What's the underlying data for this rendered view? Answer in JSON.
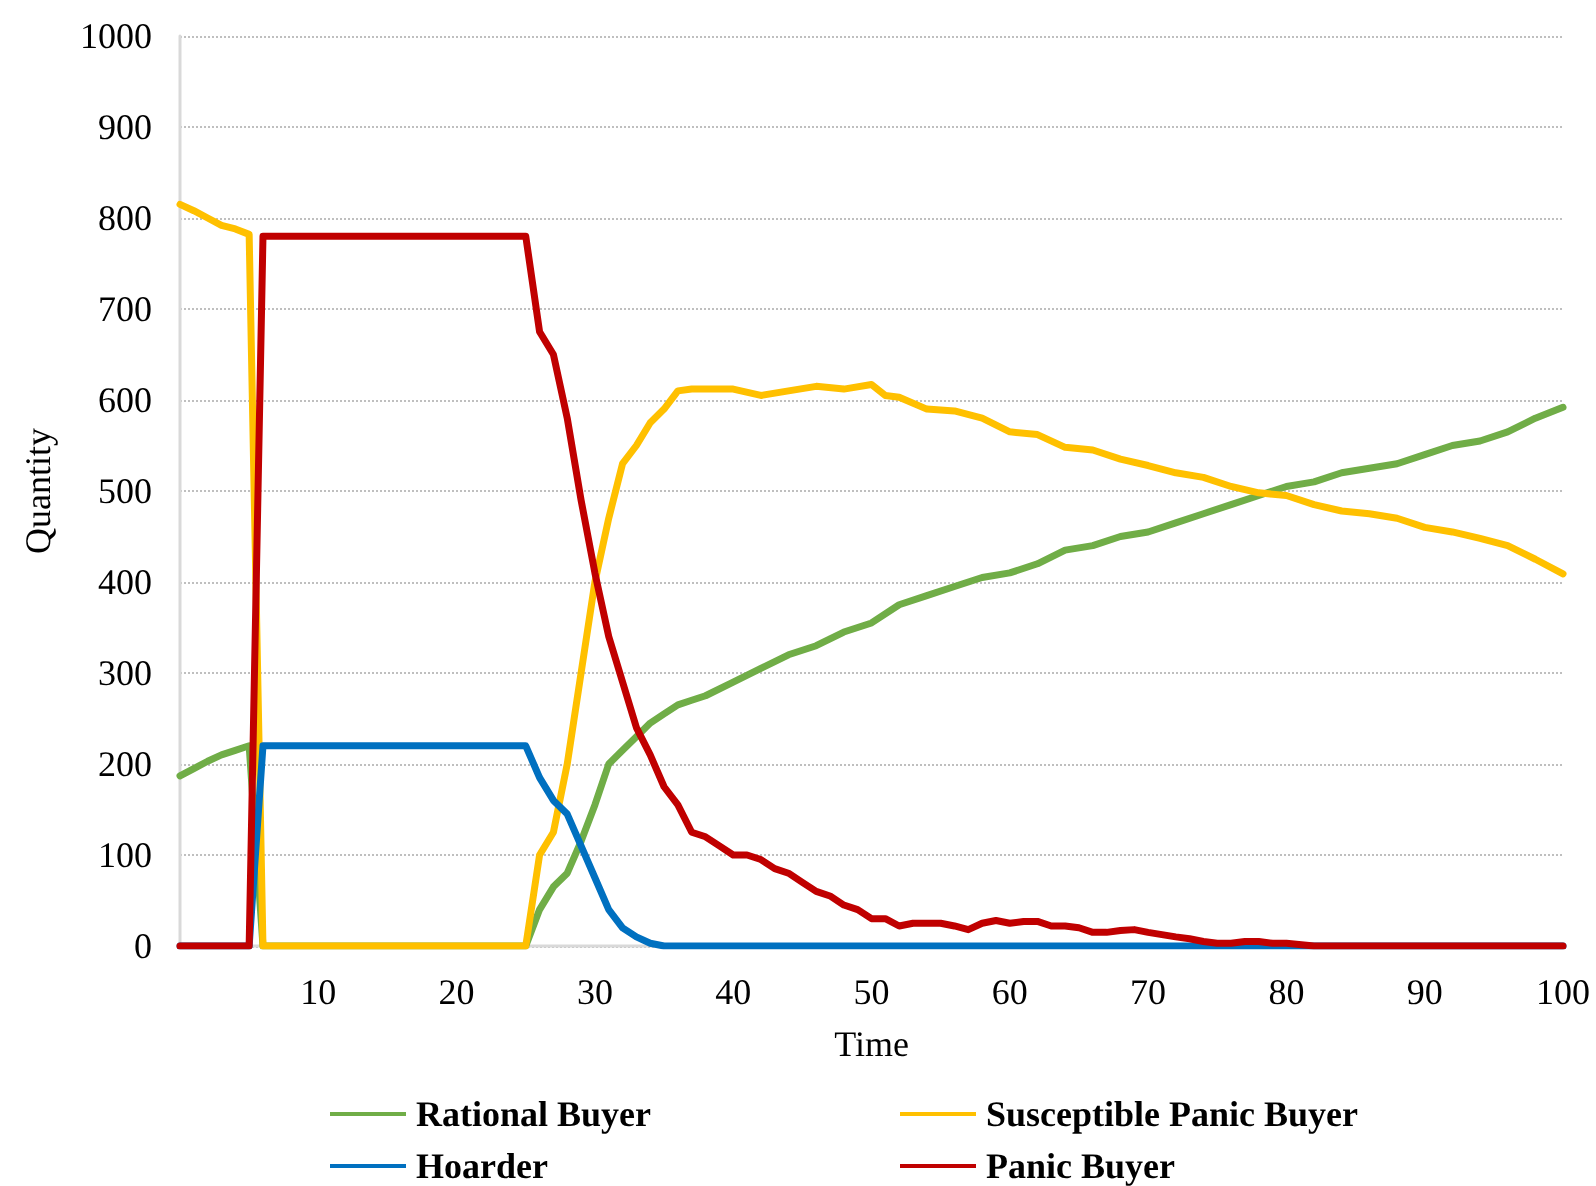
{
  "chart_data": {
    "type": "line",
    "xlabel": "Time",
    "ylabel": "Quantity",
    "xlim": [
      0,
      100
    ],
    "xticks": [
      10,
      20,
      30,
      40,
      50,
      60,
      70,
      80,
      90,
      100
    ],
    "ylim": [
      0,
      1000
    ],
    "yticks": [
      0,
      100,
      200,
      300,
      400,
      500,
      600,
      700,
      800,
      900,
      1000
    ],
    "grid": "y",
    "legend": "bottom",
    "marker": "none",
    "line_style": "solid",
    "series": [
      {
        "name": "Rational Buyer",
        "color": "#70ad47",
        "x": [
          0,
          1,
          2,
          3,
          4,
          5,
          6,
          10,
          15,
          20,
          25,
          26,
          27,
          28,
          29,
          30,
          31,
          32,
          33,
          34,
          35,
          36,
          37,
          38,
          40,
          42,
          44,
          46,
          48,
          50,
          52,
          54,
          56,
          58,
          60,
          62,
          64,
          66,
          68,
          70,
          72,
          74,
          76,
          78,
          80,
          82,
          84,
          86,
          88,
          90,
          92,
          94,
          96,
          98,
          100
        ],
        "values": [
          187,
          195,
          203,
          210,
          215,
          220,
          0,
          0,
          0,
          0,
          0,
          40,
          65,
          80,
          115,
          155,
          200,
          215,
          230,
          245,
          255,
          265,
          270,
          275,
          290,
          305,
          320,
          330,
          345,
          355,
          375,
          385,
          395,
          405,
          410,
          420,
          435,
          440,
          450,
          455,
          465,
          475,
          485,
          495,
          505,
          510,
          520,
          525,
          530,
          540,
          550,
          555,
          565,
          580,
          592
        ]
      },
      {
        "name": "Susceptible Panic Buyer",
        "color": "#ffc000",
        "x": [
          0,
          1,
          2,
          3,
          4,
          5,
          6,
          10,
          15,
          20,
          25,
          26,
          27,
          28,
          29,
          30,
          31,
          32,
          33,
          34,
          35,
          36,
          37,
          38,
          40,
          42,
          44,
          46,
          48,
          50,
          51,
          52,
          54,
          56,
          58,
          60,
          62,
          64,
          66,
          68,
          70,
          72,
          74,
          76,
          78,
          80,
          82,
          84,
          86,
          88,
          90,
          92,
          94,
          96,
          98,
          100
        ],
        "values": [
          815,
          808,
          800,
          792,
          788,
          782,
          0,
          0,
          0,
          0,
          0,
          100,
          125,
          200,
          300,
          400,
          470,
          530,
          550,
          575,
          590,
          610,
          612,
          612,
          612,
          605,
          610,
          615,
          612,
          617,
          605,
          603,
          590,
          588,
          580,
          565,
          562,
          548,
          545,
          535,
          528,
          520,
          515,
          505,
          498,
          495,
          485,
          478,
          475,
          470,
          460,
          455,
          448,
          440,
          425,
          409
        ]
      },
      {
        "name": "Hoarder",
        "color": "#0070c0",
        "x": [
          0,
          5,
          6,
          10,
          15,
          20,
          25,
          26,
          27,
          28,
          29,
          30,
          31,
          32,
          33,
          34,
          35,
          50,
          100
        ],
        "values": [
          0,
          0,
          220,
          220,
          220,
          220,
          220,
          185,
          160,
          145,
          110,
          75,
          40,
          20,
          10,
          3,
          0,
          0,
          0
        ]
      },
      {
        "name": "Panic Buyer",
        "color": "#c00000",
        "x": [
          0,
          5,
          6,
          10,
          15,
          20,
          25,
          26,
          27,
          28,
          29,
          30,
          31,
          32,
          33,
          34,
          35,
          36,
          37,
          38,
          39,
          40,
          41,
          42,
          43,
          44,
          45,
          46,
          47,
          48,
          49,
          50,
          51,
          52,
          53,
          54,
          55,
          56,
          57,
          58,
          59,
          60,
          61,
          62,
          63,
          64,
          65,
          66,
          67,
          68,
          69,
          70,
          72,
          73,
          74,
          75,
          76,
          77,
          78,
          79,
          80,
          82,
          85,
          90,
          100
        ],
        "values": [
          0,
          0,
          780,
          780,
          780,
          780,
          780,
          675,
          650,
          580,
          490,
          410,
          340,
          290,
          240,
          210,
          175,
          155,
          125,
          120,
          110,
          100,
          100,
          95,
          85,
          80,
          70,
          60,
          55,
          45,
          40,
          30,
          30,
          22,
          25,
          25,
          25,
          22,
          18,
          25,
          28,
          25,
          27,
          27,
          22,
          22,
          20,
          15,
          15,
          17,
          18,
          15,
          10,
          8,
          5,
          3,
          3,
          5,
          5,
          3,
          3,
          0,
          0,
          0,
          0
        ]
      }
    ]
  }
}
